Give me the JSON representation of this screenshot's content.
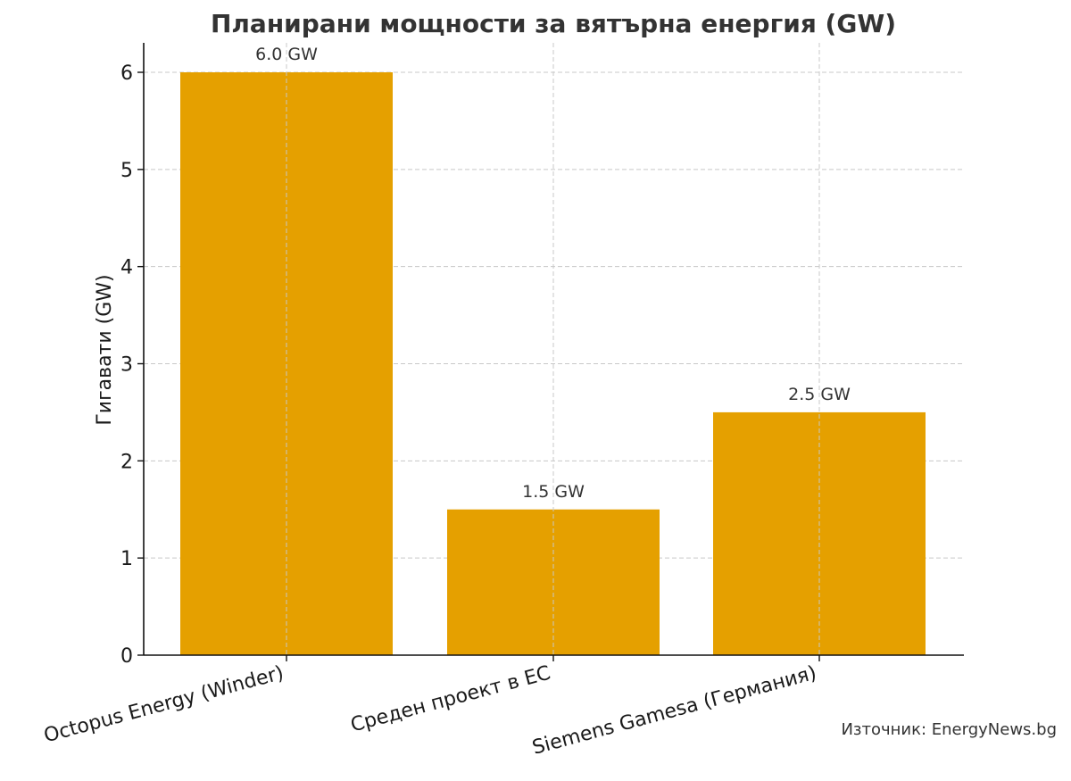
{
  "chart_data": {
    "type": "bar",
    "title": "Планирани мощности за вятърна енергия (GW)",
    "xlabel": "",
    "ylabel": "Гигавати (GW)",
    "categories": [
      "Octopus Energy (Winder)",
      "Среден проект в ЕС",
      "Siemens Gamesa (Германия)"
    ],
    "values": [
      6.0,
      1.5,
      2.5
    ],
    "data_labels": [
      "6.0 GW",
      "1.5 GW",
      "2.5 GW"
    ],
    "yticks": [
      0,
      1,
      2,
      3,
      4,
      5,
      6
    ],
    "ylim": [
      0,
      6.3
    ],
    "grid": true,
    "bar_color": "#E5A000",
    "source_note": "Източник: EnergyNews.bg"
  }
}
